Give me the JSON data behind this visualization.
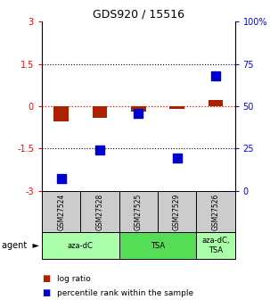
{
  "title": "GDS920 / 15516",
  "samples": [
    "GSM27524",
    "GSM27528",
    "GSM27525",
    "GSM27529",
    "GSM27526"
  ],
  "log_ratio": [
    -0.55,
    -0.42,
    -0.18,
    -0.08,
    0.22
  ],
  "percentile_rank": [
    7.5,
    24.0,
    46.0,
    19.5,
    68.0
  ],
  "agents": [
    {
      "label": "aza-dC",
      "span": [
        0,
        2
      ],
      "color": "#aaffaa"
    },
    {
      "label": "TSA",
      "span": [
        2,
        4
      ],
      "color": "#55dd55"
    },
    {
      "label": "aza-dC,\nTSA",
      "span": [
        4,
        5
      ],
      "color": "#aaffaa"
    }
  ],
  "ylim_left": [
    -3,
    3
  ],
  "ylim_right": [
    0,
    100
  ],
  "yticks_left": [
    -3,
    -1.5,
    0,
    1.5,
    3
  ],
  "yticks_right": [
    0,
    25,
    50,
    75,
    100
  ],
  "ytick_labels_left": [
    "-3",
    "-1.5",
    "0",
    "1.5",
    "3"
  ],
  "ytick_labels_right": [
    "0",
    "25",
    "50",
    "75",
    "100%"
  ],
  "bar_color": "#aa2200",
  "dot_color": "#0000cc",
  "bar_width": 0.38,
  "dot_size": 45,
  "legend_red": "log ratio",
  "legend_blue": "percentile rank within the sample",
  "sample_bg": "#cccccc",
  "plot_bg": "#ffffff"
}
